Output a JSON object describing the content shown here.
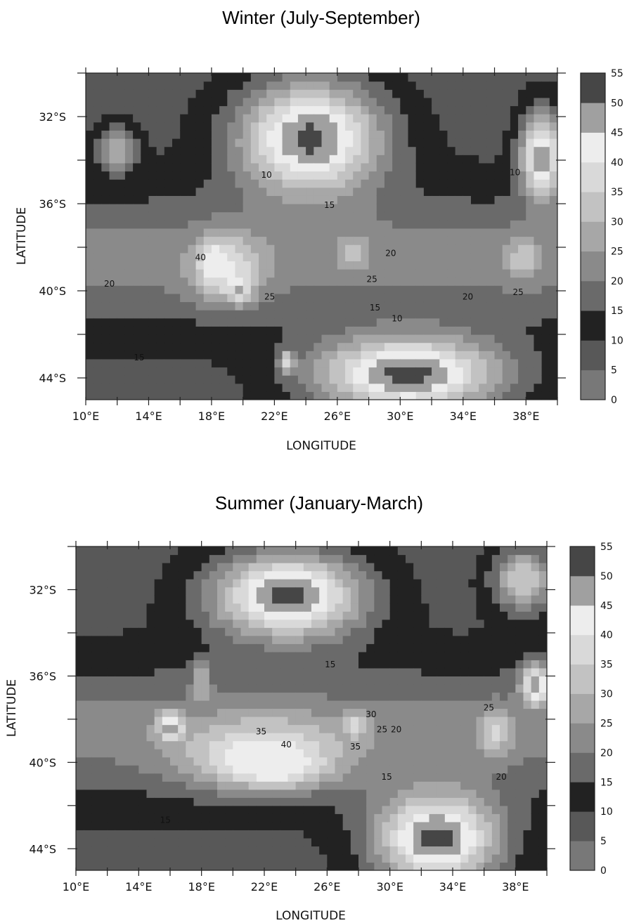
{
  "chart_data": [
    {
      "type": "heatmap",
      "title": "Winter (July-September)",
      "xlabel": "LONGITUDE",
      "ylabel": "LATITUDE",
      "xlim": [
        10,
        40
      ],
      "ylim": [
        -45,
        -30
      ],
      "x_ticks": [
        "10°E",
        "14°E",
        "18°E",
        "22°E",
        "26°E",
        "30°E",
        "34°E",
        "38°E"
      ],
      "x_tick_values": [
        10,
        14,
        18,
        22,
        26,
        30,
        34,
        38
      ],
      "y_ticks": [
        "32°S",
        "36°S",
        "40°S",
        "44°S"
      ],
      "y_tick_values": [
        -32,
        -36,
        -40,
        -44
      ],
      "colorbar": {
        "levels": [
          0,
          5,
          10,
          15,
          20,
          25,
          30,
          35,
          40,
          45,
          50,
          55
        ],
        "labels": [
          "0",
          "5",
          "10",
          "15",
          "20",
          "25",
          "30",
          "35",
          "40",
          "45",
          "50",
          "55"
        ]
      },
      "contour_labels": [
        {
          "text": "10",
          "lon": 21.5,
          "lat": -34.8
        },
        {
          "text": "15",
          "lon": 25.5,
          "lat": -36.2
        },
        {
          "text": "20",
          "lon": 11.5,
          "lat": -39.8
        },
        {
          "text": "40",
          "lon": 17.3,
          "lat": -38.6
        },
        {
          "text": "25",
          "lon": 21.7,
          "lat": -40.4
        },
        {
          "text": "20",
          "lon": 29.4,
          "lat": -38.4
        },
        {
          "text": "25",
          "lon": 28.2,
          "lat": -39.6
        },
        {
          "text": "15",
          "lon": 28.4,
          "lat": -40.9
        },
        {
          "text": "10",
          "lon": 29.8,
          "lat": -41.4
        },
        {
          "text": "20",
          "lon": 34.3,
          "lat": -40.4
        },
        {
          "text": "25",
          "lon": 37.5,
          "lat": -40.2
        },
        {
          "text": "15",
          "lon": 13.4,
          "lat": -43.2
        },
        {
          "text": "10",
          "lon": 37.3,
          "lat": -34.7
        }
      ],
      "features": [
        {
          "value": 52,
          "lon": 24.3,
          "lat": -33.0,
          "sx": 4.6,
          "sy": 2.6
        },
        {
          "value": 52,
          "lon": 30.5,
          "lat": -43.8,
          "sx": 6.0,
          "sy": 1.8
        },
        {
          "value": 50,
          "lon": 39.0,
          "lat": -33.8,
          "sx": 1.3,
          "sy": 2.0
        },
        {
          "value": 52,
          "lon": 18.0,
          "lat": -38.6,
          "sx": 0.6,
          "sy": 0.8
        },
        {
          "value": 50,
          "lon": 19.8,
          "lat": -39.9,
          "sx": 0.6,
          "sy": 0.5
        },
        {
          "value": 42,
          "lon": 19.0,
          "lat": -39.0,
          "sx": 2.2,
          "sy": 1.5
        },
        {
          "value": 34,
          "lon": 27.0,
          "lat": -38.3,
          "sx": 1.0,
          "sy": 0.8
        },
        {
          "value": 34,
          "lon": 37.8,
          "lat": -38.5,
          "sx": 1.0,
          "sy": 1.0
        },
        {
          "value": 30,
          "lon": 12.0,
          "lat": -33.5,
          "sx": 1.2,
          "sy": 1.0
        },
        {
          "value": 40,
          "lon": 22.8,
          "lat": -43.3,
          "sx": 0.5,
          "sy": 0.5
        }
      ]
    },
    {
      "type": "heatmap",
      "title": "Summer (January-March)",
      "xlabel": "LONGITUDE",
      "ylabel": "LATITUDE",
      "xlim": [
        10,
        40
      ],
      "ylim": [
        -45,
        -30
      ],
      "x_ticks": [
        "10°E",
        "14°E",
        "18°E",
        "22°E",
        "26°E",
        "30°E",
        "34°E",
        "38°E"
      ],
      "x_tick_values": [
        10,
        14,
        18,
        22,
        26,
        30,
        34,
        38
      ],
      "y_ticks": [
        "32°S",
        "36°S",
        "40°S",
        "44°S"
      ],
      "y_tick_values": [
        -32,
        -36,
        -40,
        -44
      ],
      "colorbar": {
        "levels": [
          0,
          5,
          10,
          15,
          20,
          25,
          30,
          35,
          40,
          45,
          50,
          55
        ],
        "labels": [
          "0",
          "5",
          "10",
          "15",
          "20",
          "25",
          "30",
          "35",
          "40",
          "45",
          "50",
          "55"
        ]
      },
      "contour_labels": [
        {
          "text": "15",
          "lon": 26.2,
          "lat": -35.6
        },
        {
          "text": "35",
          "lon": 21.8,
          "lat": -38.7
        },
        {
          "text": "40",
          "lon": 23.4,
          "lat": -39.3
        },
        {
          "text": "30",
          "lon": 28.8,
          "lat": -37.9
        },
        {
          "text": "35",
          "lon": 27.8,
          "lat": -39.4
        },
        {
          "text": "25",
          "lon": 29.5,
          "lat": -38.6
        },
        {
          "text": "20",
          "lon": 30.4,
          "lat": -38.6
        },
        {
          "text": "15",
          "lon": 29.8,
          "lat": -40.8
        },
        {
          "text": "15",
          "lon": 15.7,
          "lat": -42.8
        },
        {
          "text": "25",
          "lon": 36.3,
          "lat": -37.6
        },
        {
          "text": "20",
          "lon": 37.1,
          "lat": -40.8
        }
      ],
      "features": [
        {
          "value": 52,
          "lon": 23.5,
          "lat": -32.3,
          "sx": 4.8,
          "sy": 2.0
        },
        {
          "value": 52,
          "lon": 33.0,
          "lat": -43.5,
          "sx": 4.0,
          "sy": 2.2
        },
        {
          "value": 50,
          "lon": 39.3,
          "lat": -36.4,
          "sx": 0.9,
          "sy": 0.9
        },
        {
          "value": 50,
          "lon": 16.0,
          "lat": -38.3,
          "sx": 0.8,
          "sy": 0.6
        },
        {
          "value": 50,
          "lon": 22.5,
          "lat": -40.2,
          "sx": 2.5,
          "sy": 0.7
        },
        {
          "value": 44,
          "lon": 22.0,
          "lat": -39.6,
          "sx": 5.0,
          "sy": 1.6
        },
        {
          "value": 36,
          "lon": 36.7,
          "lat": -38.6,
          "sx": 1.1,
          "sy": 1.0
        },
        {
          "value": 38,
          "lon": 27.8,
          "lat": -38.2,
          "sx": 0.8,
          "sy": 0.6
        },
        {
          "value": 32,
          "lon": 18.0,
          "lat": -36.3,
          "sx": 0.6,
          "sy": 0.9
        },
        {
          "value": 34,
          "lon": 38.5,
          "lat": -31.5,
          "sx": 2.0,
          "sy": 1.5
        }
      ]
    }
  ]
}
